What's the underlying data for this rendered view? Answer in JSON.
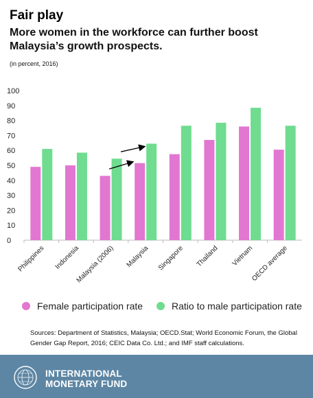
{
  "header": {
    "title": "Fair play",
    "subtitle": "More women in the workforce can further boost Malaysia’s growth prospects.",
    "unit": "(in percent, 2016)"
  },
  "legend": {
    "female": "Female participation rate",
    "ratio": "Ratio to male participation rate"
  },
  "sources": "Sources: Department of Statistics, Malaysia; OECD.Stat; World Economic Forum, the Global Gender Gap Report, 2016; CEIC Data Co. Ltd.; and IMF staff calculations.",
  "footer": {
    "line1": "INTERNATIONAL",
    "line2": "MONETARY FUND"
  },
  "colors": {
    "female": "#e277d1",
    "ratio": "#6fdc8f",
    "footer_bg": "#5d86a4"
  },
  "chart_data": {
    "type": "bar",
    "categories": [
      "Philippines",
      "Indonesia",
      "Malaysia (2006)",
      "Malaysia",
      "Singapore",
      "Thailand",
      "Vietnam",
      "OECD average"
    ],
    "series": [
      {
        "name": "Female participation rate",
        "values": [
          49,
          50,
          43,
          51.5,
          57.5,
          67,
          76,
          60.5
        ]
      },
      {
        "name": "Ratio to male participation rate",
        "values": [
          61,
          58.5,
          54.5,
          64.5,
          76.5,
          78.5,
          88.5,
          76.5
        ]
      }
    ],
    "ylim": [
      0,
      100
    ],
    "yticks": [
      0,
      10,
      20,
      30,
      40,
      50,
      60,
      70,
      80,
      90,
      100
    ],
    "grid": false,
    "legend_position": "bottom",
    "annotations": "arrows from Malaysia (2006) bars to Malaysia bars"
  }
}
